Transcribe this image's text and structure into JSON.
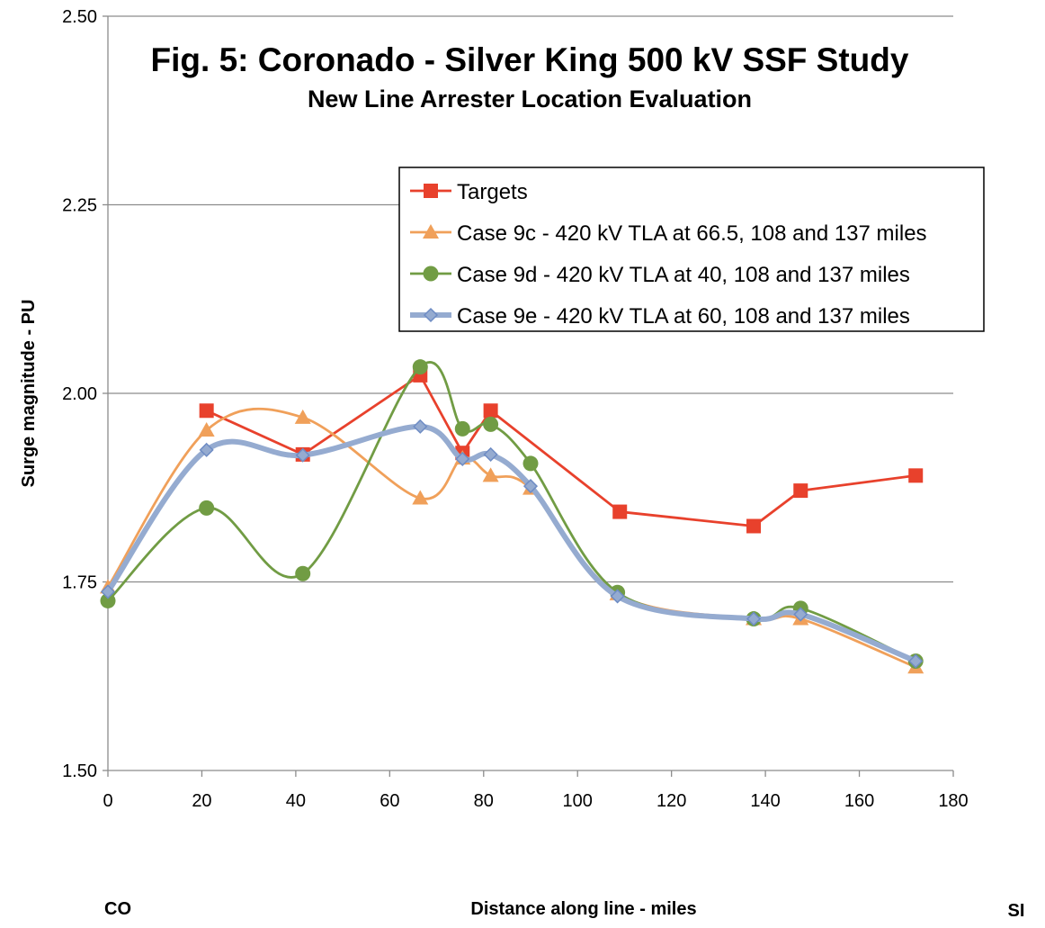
{
  "chart_data": {
    "type": "line",
    "title": "Fig. 5: Coronado - Silver King 500 kV SSF Study",
    "subtitle": "New  Line Arrester Location Evaluation",
    "xlabel": "Distance along line - miles",
    "ylabel": "Surge magnitude - PU",
    "x_end_labels": {
      "left": "CO",
      "right": "SI"
    },
    "xlim": [
      0,
      180
    ],
    "ylim": [
      1.5,
      2.5
    ],
    "x_ticks": [
      0,
      20,
      40,
      60,
      80,
      100,
      120,
      140,
      160,
      180
    ],
    "x_tick_labels": [
      "0",
      "20",
      "40",
      "60",
      "80",
      "100",
      "120",
      "140",
      "160",
      "180"
    ],
    "y_ticks": [
      1.5,
      1.75,
      2.0,
      2.25,
      2.5
    ],
    "y_tick_labels": [
      "1.50",
      "1.75",
      "2.00",
      "2.25",
      "2.50"
    ],
    "grid": "horizontal",
    "legend_position": "upper-right inside plot",
    "series": [
      {
        "name": "Targets",
        "color": "#e8412c",
        "marker": "square",
        "smooth": false,
        "points": [
          [
            21,
            1.977
          ],
          [
            41.5,
            1.919
          ],
          [
            66.5,
            2.024
          ],
          [
            75.5,
            1.921
          ],
          [
            81.5,
            1.977
          ],
          [
            109,
            1.843
          ],
          [
            137.5,
            1.824
          ],
          [
            147.5,
            1.871
          ],
          [
            172,
            1.891
          ]
        ]
      },
      {
        "name": "Case 9c - 420 kV TLA at 66.5, 108 and 137 miles",
        "color": "#f0a05a",
        "marker": "triangle",
        "smooth": true,
        "points": [
          [
            0,
            1.743
          ],
          [
            21,
            1.951
          ],
          [
            41.5,
            1.968
          ],
          [
            66.5,
            1.861
          ],
          [
            75.5,
            1.914
          ],
          [
            81.5,
            1.891
          ],
          [
            90,
            1.874
          ],
          [
            108.5,
            1.734
          ],
          [
            137.5,
            1.701
          ],
          [
            147.5,
            1.701
          ],
          [
            172,
            1.637
          ]
        ]
      },
      {
        "name": "Case 9d - 420 kV TLA at 40, 108 and 137 miles",
        "color": "#719c44",
        "marker": "circle",
        "smooth": true,
        "points": [
          [
            0,
            1.725
          ],
          [
            21,
            1.848
          ],
          [
            41.5,
            1.761
          ],
          [
            66.5,
            2.035
          ],
          [
            75.5,
            1.953
          ],
          [
            81.5,
            1.959
          ],
          [
            90,
            1.907
          ],
          [
            108.5,
            1.736
          ],
          [
            137.5,
            1.701
          ],
          [
            147.5,
            1.715
          ],
          [
            172,
            1.645
          ]
        ]
      },
      {
        "name": "Case 9e - 420 kV TLA at 60, 108 and 137 miles",
        "color": "#95abd0",
        "marker": "diamond",
        "smooth": true,
        "thick": true,
        "points": [
          [
            0,
            1.737
          ],
          [
            21,
            1.925
          ],
          [
            41.5,
            1.918
          ],
          [
            66.5,
            1.956
          ],
          [
            75.5,
            1.913
          ],
          [
            81.5,
            1.919
          ],
          [
            90,
            1.877
          ],
          [
            108.5,
            1.731
          ],
          [
            137.5,
            1.701
          ],
          [
            147.5,
            1.707
          ],
          [
            172,
            1.645
          ]
        ]
      }
    ]
  }
}
